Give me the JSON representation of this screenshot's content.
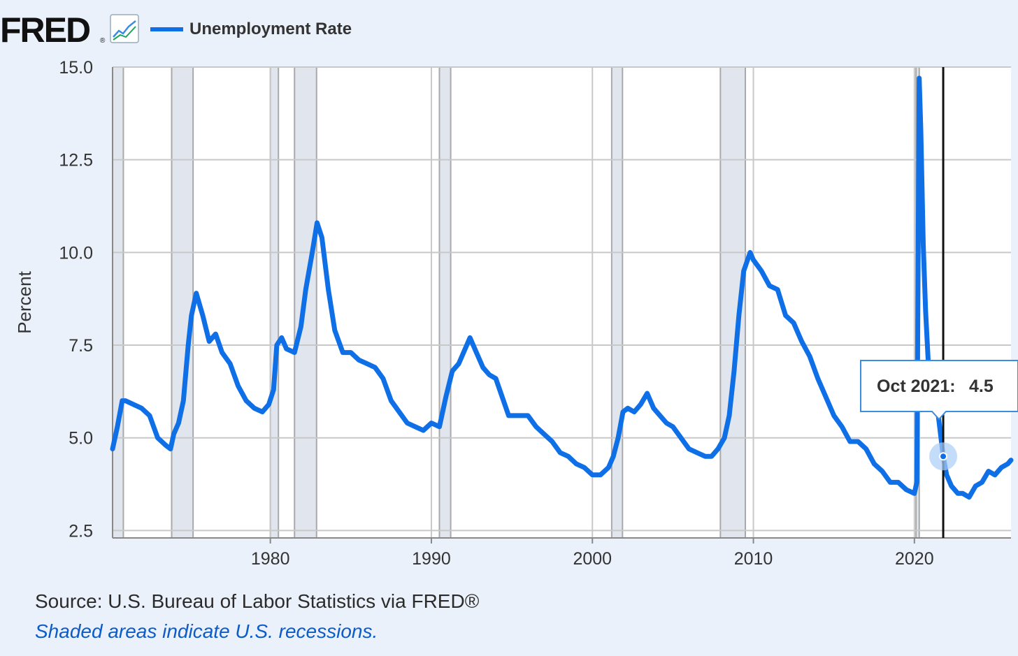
{
  "header": {
    "logo_text": "FRED",
    "logo_mark": "®",
    "chart_icon": "line-chart-icon",
    "legend_label": "Unemployment Rate"
  },
  "footer": {
    "source": "Source: U.S. Bureau of Labor Statistics via FRED®",
    "note": "Shaded areas indicate U.S. recessions."
  },
  "tooltip": {
    "label": "Oct 2021:",
    "value": "4.5"
  },
  "colors": {
    "series": "#0e6fe6",
    "recession": "#e1e6ee",
    "background": "#ebf1fa",
    "plot": "#ffffff",
    "grid": "#c8c8c8",
    "cursor": "#111111"
  },
  "chart_data": {
    "type": "line",
    "title": "",
    "xlabel": "",
    "ylabel": "Percent",
    "xlim": [
      1970.2,
      2026.0
    ],
    "ylim": [
      2.3,
      15.0
    ],
    "yticks": [
      2.5,
      5.0,
      7.5,
      10.0,
      12.5,
      15.0
    ],
    "ytick_labels": [
      "2.5",
      "5.0",
      "7.5",
      "10.0",
      "12.5",
      "15.0"
    ],
    "xticks": [
      1980,
      1990,
      2000,
      2010,
      2020
    ],
    "xtick_labels": [
      "1980",
      "1990",
      "2000",
      "2010",
      "2020"
    ],
    "grid": true,
    "legend": "top-left",
    "recessions": [
      [
        1969.95,
        1970.87
      ],
      [
        1973.87,
        1975.2
      ],
      [
        1980.0,
        1980.5
      ],
      [
        1981.5,
        1982.87
      ],
      [
        1990.5,
        1991.2
      ],
      [
        2001.2,
        2001.87
      ],
      [
        2007.95,
        2009.5
      ],
      [
        2020.1,
        2020.3
      ]
    ],
    "cursor_x": 2021.79,
    "highlight": {
      "x": 2021.79,
      "y": 4.5
    },
    "series": [
      {
        "name": "Unemployment Rate",
        "x": [
          1970.2,
          1970.5,
          1970.8,
          1971.0,
          1971.5,
          1972.0,
          1972.5,
          1973.0,
          1973.5,
          1973.8,
          1974.0,
          1974.3,
          1974.6,
          1974.9,
          1975.1,
          1975.4,
          1975.8,
          1976.2,
          1976.6,
          1977.0,
          1977.5,
          1978.0,
          1978.5,
          1979.0,
          1979.5,
          1979.9,
          1980.2,
          1980.4,
          1980.7,
          1981.0,
          1981.5,
          1981.9,
          1982.2,
          1982.6,
          1982.9,
          1983.2,
          1983.6,
          1984.0,
          1984.5,
          1985.0,
          1985.5,
          1986.0,
          1986.5,
          1987.0,
          1987.5,
          1988.0,
          1988.5,
          1989.0,
          1989.5,
          1990.0,
          1990.5,
          1990.9,
          1991.3,
          1991.7,
          1992.0,
          1992.4,
          1992.8,
          1993.2,
          1993.6,
          1994.0,
          1994.4,
          1994.8,
          1995.2,
          1995.6,
          1996.0,
          1996.5,
          1997.0,
          1997.5,
          1998.0,
          1998.5,
          1999.0,
          1999.5,
          2000.0,
          2000.5,
          2001.0,
          2001.3,
          2001.6,
          2001.9,
          2002.2,
          2002.6,
          2003.0,
          2003.4,
          2003.8,
          2004.2,
          2004.6,
          2005.0,
          2005.5,
          2006.0,
          2006.5,
          2007.0,
          2007.4,
          2007.8,
          2008.2,
          2008.5,
          2008.8,
          2009.1,
          2009.4,
          2009.8,
          2010.0,
          2010.5,
          2011.0,
          2011.5,
          2012.0,
          2012.5,
          2013.0,
          2013.5,
          2014.0,
          2014.5,
          2015.0,
          2015.5,
          2016.0,
          2016.5,
          2017.0,
          2017.5,
          2018.0,
          2018.5,
          2019.0,
          2019.5,
          2020.0,
          2020.15,
          2020.3,
          2020.4,
          2020.55,
          2020.7,
          2020.9,
          2021.1,
          2021.4,
          2021.79,
          2022.0,
          2022.3,
          2022.7,
          2023.0,
          2023.4,
          2023.8,
          2024.2,
          2024.6,
          2025.0,
          2025.4,
          2025.8,
          2026.0
        ],
        "values": [
          4.7,
          5.3,
          6.0,
          6.0,
          5.9,
          5.8,
          5.6,
          5.0,
          4.8,
          4.7,
          5.1,
          5.4,
          6.0,
          7.5,
          8.3,
          8.9,
          8.3,
          7.6,
          7.8,
          7.3,
          7.0,
          6.4,
          6.0,
          5.8,
          5.7,
          5.9,
          6.3,
          7.5,
          7.7,
          7.4,
          7.3,
          8.0,
          9.0,
          10.0,
          10.8,
          10.4,
          9.0,
          7.9,
          7.3,
          7.3,
          7.1,
          7.0,
          6.9,
          6.6,
          6.0,
          5.7,
          5.4,
          5.3,
          5.2,
          5.4,
          5.3,
          6.1,
          6.8,
          7.0,
          7.3,
          7.7,
          7.3,
          6.9,
          6.7,
          6.6,
          6.1,
          5.6,
          5.6,
          5.6,
          5.6,
          5.3,
          5.1,
          4.9,
          4.6,
          4.5,
          4.3,
          4.2,
          4.0,
          4.0,
          4.2,
          4.5,
          5.0,
          5.7,
          5.8,
          5.7,
          5.9,
          6.2,
          5.8,
          5.6,
          5.4,
          5.3,
          5.0,
          4.7,
          4.6,
          4.5,
          4.5,
          4.7,
          5.0,
          5.6,
          6.8,
          8.3,
          9.5,
          10.0,
          9.8,
          9.5,
          9.1,
          9.0,
          8.3,
          8.1,
          7.6,
          7.2,
          6.6,
          6.1,
          5.6,
          5.3,
          4.9,
          4.9,
          4.7,
          4.3,
          4.1,
          3.8,
          3.8,
          3.6,
          3.5,
          3.8,
          14.7,
          13.3,
          10.2,
          8.4,
          6.7,
          6.2,
          5.9,
          4.5,
          4.0,
          3.7,
          3.5,
          3.5,
          3.4,
          3.7,
          3.8,
          4.1,
          4.0,
          4.2,
          4.3,
          4.4
        ]
      }
    ]
  }
}
